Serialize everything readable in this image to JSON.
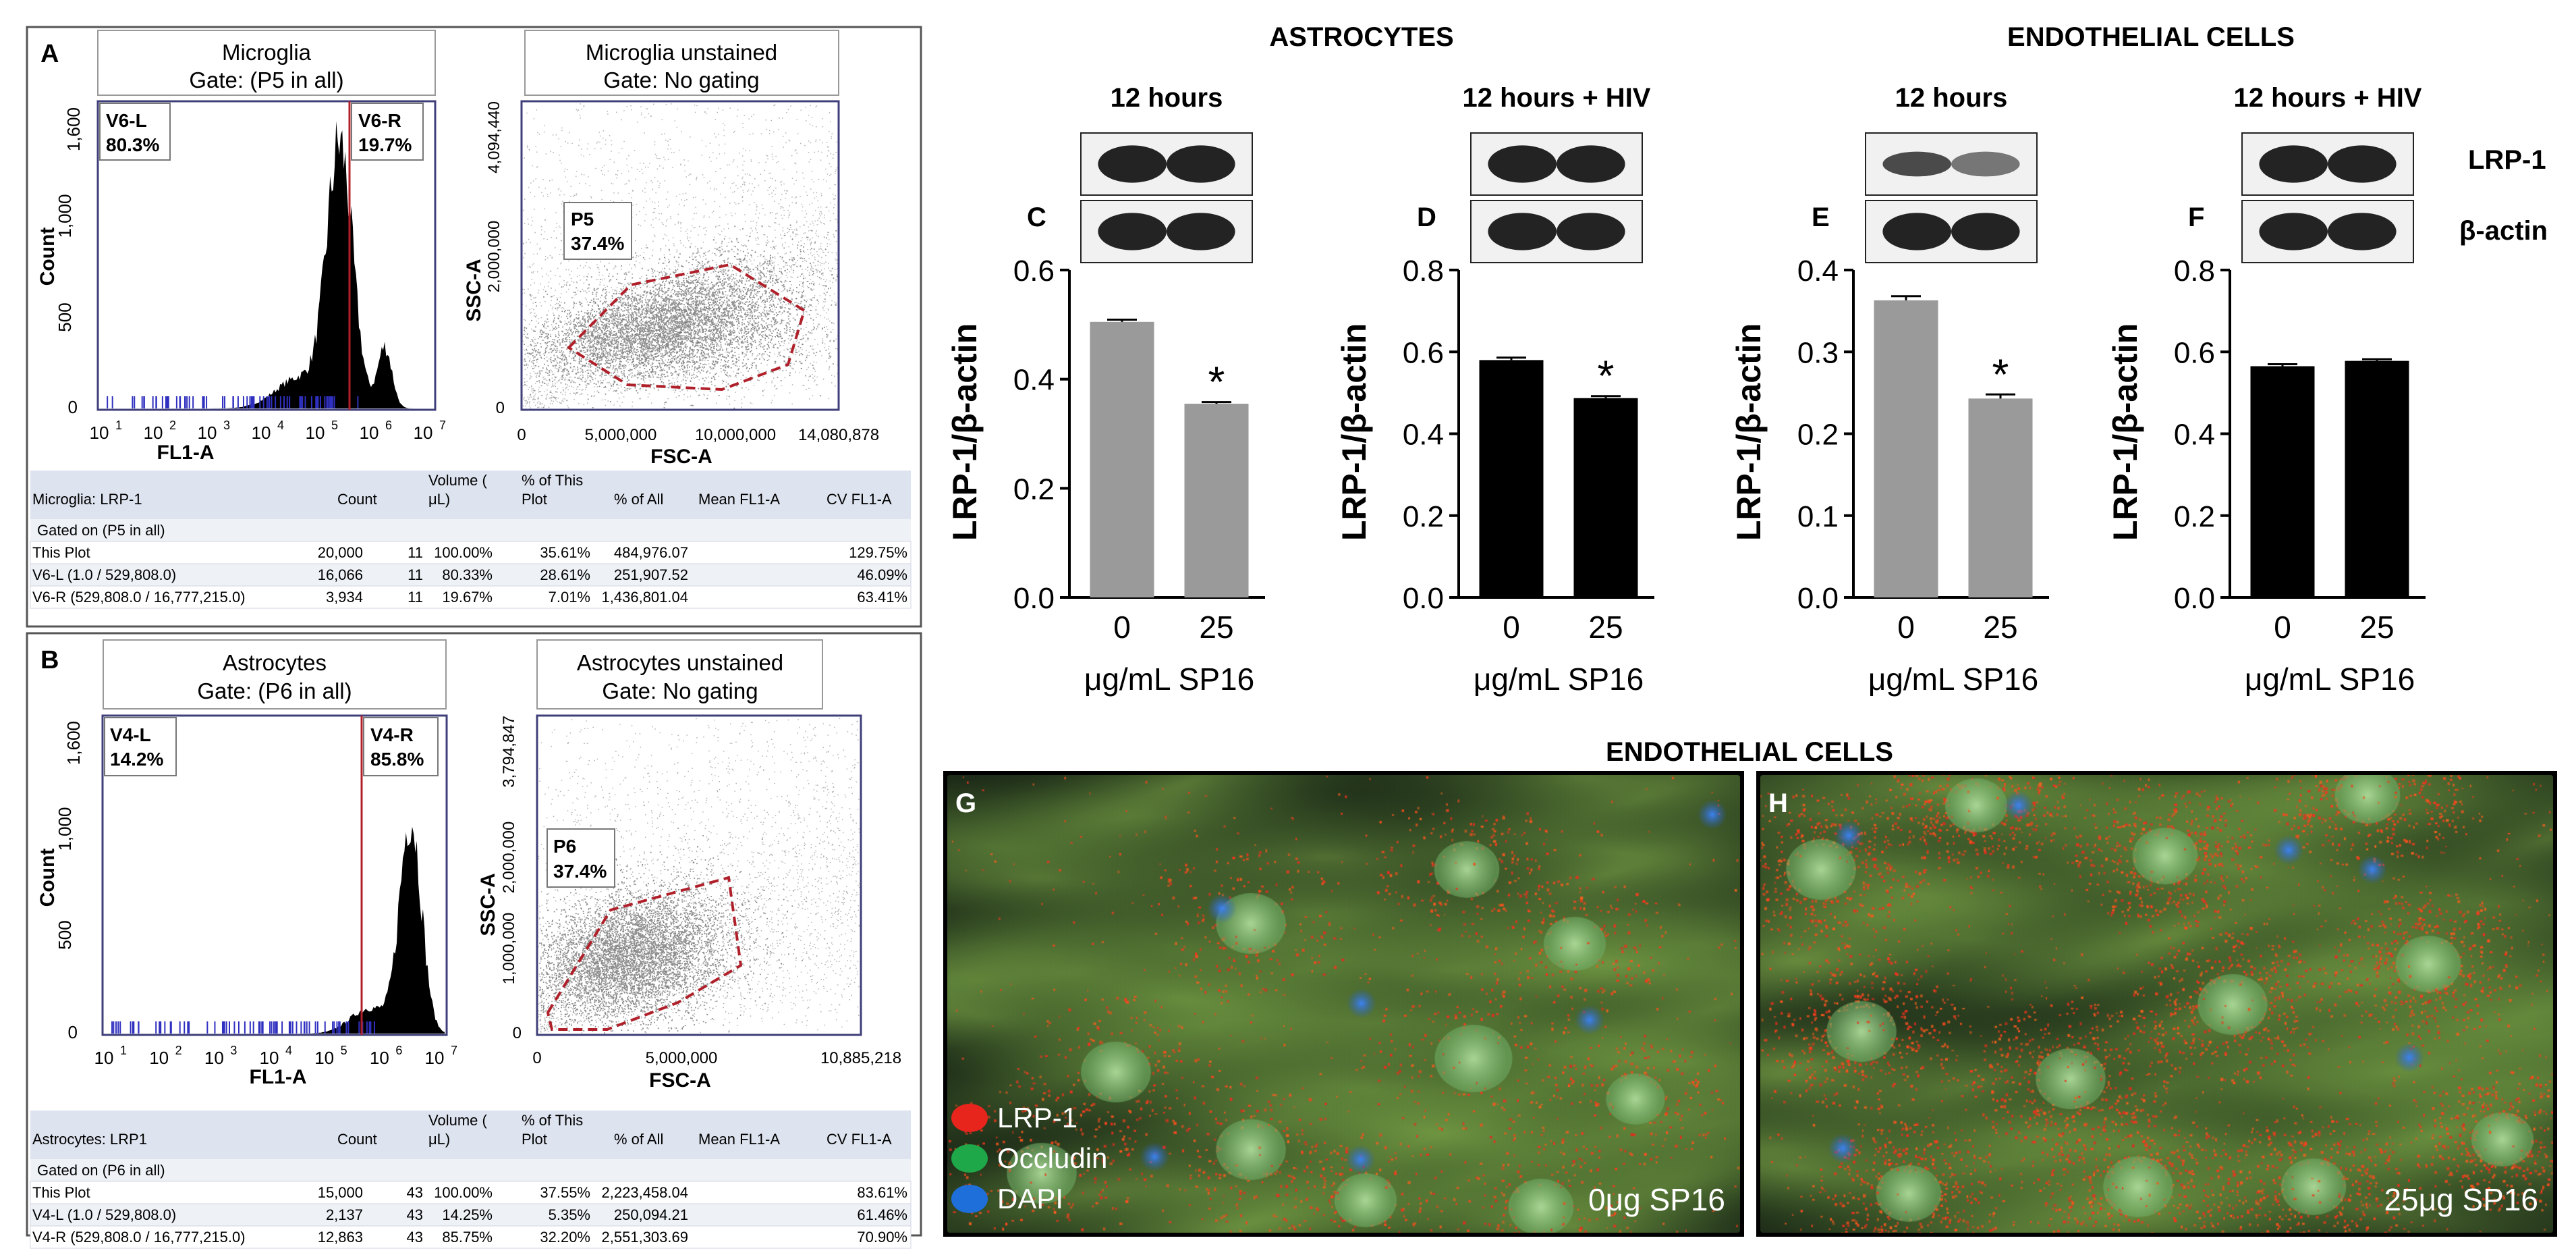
{
  "panels": {
    "A": {
      "letter": "A",
      "hist": {
        "title1": "Microglia",
        "title2": "Gate: (P5 in all)",
        "xlabel": "FL1-A",
        "ylabel": "Count",
        "yticks": [
          "0",
          "500",
          "1,000",
          "1,600"
        ],
        "left_gate": {
          "name": "V6-L",
          "pct": "80.3%"
        },
        "right_gate": {
          "name": "V6-R",
          "pct": "19.7%"
        }
      },
      "scatter": {
        "title1": "Microglia unstained",
        "title2": "Gate: No gating",
        "xlabel": "FSC-A",
        "ylabel": "SSC-A",
        "yticks": [
          "0",
          "2,000,000",
          "4,094,440"
        ],
        "xticks": [
          "0",
          "5,000,000",
          "10,000,000",
          "14,080,878"
        ],
        "gate": {
          "name": "P5",
          "pct": "37.4%"
        }
      },
      "table": {
        "header": [
          "Microglia: LRP-1",
          "Count",
          "Volume (μL)",
          "% of This Plot",
          "% of All",
          "Mean FL1-A",
          "CV FL1-A"
        ],
        "gated": "Gated on (P5 in all)",
        "rows": [
          [
            "This Plot",
            "20,000",
            "11",
            "100.00%",
            "35.61%",
            "484,976.07",
            "129.75%"
          ],
          [
            "V6-L (1.0 / 529,808.0)",
            "16,066",
            "11",
            "80.33%",
            "28.61%",
            "251,907.52",
            "46.09%"
          ],
          [
            "V6-R (529,808.0 / 16,777,215.0)",
            "3,934",
            "11",
            "19.67%",
            "7.01%",
            "1,436,801.04",
            "63.41%"
          ]
        ]
      }
    },
    "B": {
      "letter": "B",
      "hist": {
        "title1": "Astrocytes",
        "title2": "Gate: (P6 in all)",
        "xlabel": "FL1-A",
        "ylabel": "Count",
        "yticks": [
          "0",
          "500",
          "1,000",
          "1,600"
        ],
        "left_gate": {
          "name": "V4-L",
          "pct": "14.2%"
        },
        "right_gate": {
          "name": "V4-R",
          "pct": "85.8%"
        }
      },
      "scatter": {
        "title1": "Astrocytes unstained",
        "title2": "Gate: No gating",
        "xlabel": "FSC-A",
        "ylabel": "SSC-A",
        "yticks": [
          "0",
          "1,000,000",
          "2,000,000",
          "3,794,847"
        ],
        "xticks": [
          "0",
          "5,000,000",
          "10,885,218"
        ],
        "gate": {
          "name": "P6",
          "pct": "37.4%"
        }
      },
      "table": {
        "header": [
          "Astrocytes: LRP1",
          "Count",
          "Volume (μL)",
          "% of This Plot",
          "% of All",
          "Mean FL1-A",
          "CV FL1-A"
        ],
        "gated": "Gated on (P6 in all)",
        "rows": [
          [
            "This Plot",
            "15,000",
            "43",
            "100.00%",
            "37.55%",
            "2,223,458.04",
            "83.61%"
          ],
          [
            "V4-L (1.0 / 529,808.0)",
            "2,137",
            "43",
            "14.25%",
            "5.35%",
            "250,094.21",
            "61.46%"
          ],
          [
            "V4-R (529,808.0 / 16,777,215.0)",
            "12,863",
            "43",
            "85.75%",
            "32.20%",
            "2,551,303.69",
            "70.90%"
          ]
        ]
      }
    }
  },
  "hist_xticks": [
    "10",
    "10",
    "10",
    "10",
    "10",
    "10",
    "10"
  ],
  "hist_xexp": [
    "1",
    "2",
    "3",
    "4",
    "5",
    "6",
    "7"
  ],
  "headings": {
    "astrocytes": "ASTROCYTES",
    "endothelial": "ENDOTHELIAL CELLS",
    "endothelial_bottom": "ENDOTHELIAL CELLS"
  },
  "blot_labels": {
    "lrp1": "LRP-1",
    "actin": "β-actin"
  },
  "chart_data": [
    {
      "type": "bar",
      "panel": "C",
      "subtitle": "12 hours",
      "categories": [
        "0",
        "25"
      ],
      "values": [
        0.505,
        0.355
      ],
      "errors": [
        0.004,
        0.003
      ],
      "significant": [
        false,
        true
      ],
      "color": "#9a9a9a",
      "ylim": [
        0,
        0.6
      ],
      "yticks": [
        "0.0",
        "0.2",
        "0.4",
        "0.6"
      ],
      "ylabel": "LRP-1/β-actin",
      "xlabel": "μg/mL SP16",
      "sig_mark": "*"
    },
    {
      "type": "bar",
      "panel": "D",
      "subtitle": "12 hours + HIV",
      "categories": [
        "0",
        "25"
      ],
      "values": [
        0.58,
        0.487
      ],
      "errors": [
        0.006,
        0.005
      ],
      "significant": [
        false,
        true
      ],
      "color": "#000000",
      "ylim": [
        0,
        0.8
      ],
      "yticks": [
        "0.0",
        "0.2",
        "0.4",
        "0.6",
        "0.8"
      ],
      "ylabel": "LRP-1/β-actin",
      "xlabel": "μg/mL SP16",
      "sig_mark": "*"
    },
    {
      "type": "bar",
      "panel": "E",
      "subtitle": "12 hours",
      "categories": [
        "0",
        "25"
      ],
      "values": [
        0.363,
        0.243
      ],
      "errors": [
        0.005,
        0.005
      ],
      "significant": [
        false,
        true
      ],
      "color": "#9a9a9a",
      "ylim": [
        0,
        0.4
      ],
      "yticks": [
        "0.0",
        "0.1",
        "0.2",
        "0.3",
        "0.4"
      ],
      "ylabel": "LRP-1/β-actin",
      "xlabel": "μg/mL SP16",
      "sig_mark": "*"
    },
    {
      "type": "bar",
      "panel": "F",
      "subtitle": "12 hours + HIV",
      "categories": [
        "0",
        "25"
      ],
      "values": [
        0.565,
        0.578
      ],
      "errors": [
        0.005,
        0.004
      ],
      "significant": [
        false,
        false
      ],
      "color": "#000000",
      "ylim": [
        0,
        0.8
      ],
      "yticks": [
        "0.0",
        "0.2",
        "0.4",
        "0.6",
        "0.8"
      ],
      "ylabel": "LRP-1/β-actin",
      "xlabel": "μg/mL SP16",
      "sig_mark": "*"
    }
  ],
  "micrographs": {
    "G": {
      "letter": "G",
      "condition": "0μg SP16"
    },
    "H": {
      "letter": "H",
      "condition": "25μg SP16"
    }
  },
  "legend": [
    {
      "label": "LRP-1",
      "color": "#e8251c"
    },
    {
      "label": "Occludin",
      "color": "#1ea84a"
    },
    {
      "label": "DAPI",
      "color": "#1e6fd9"
    }
  ]
}
